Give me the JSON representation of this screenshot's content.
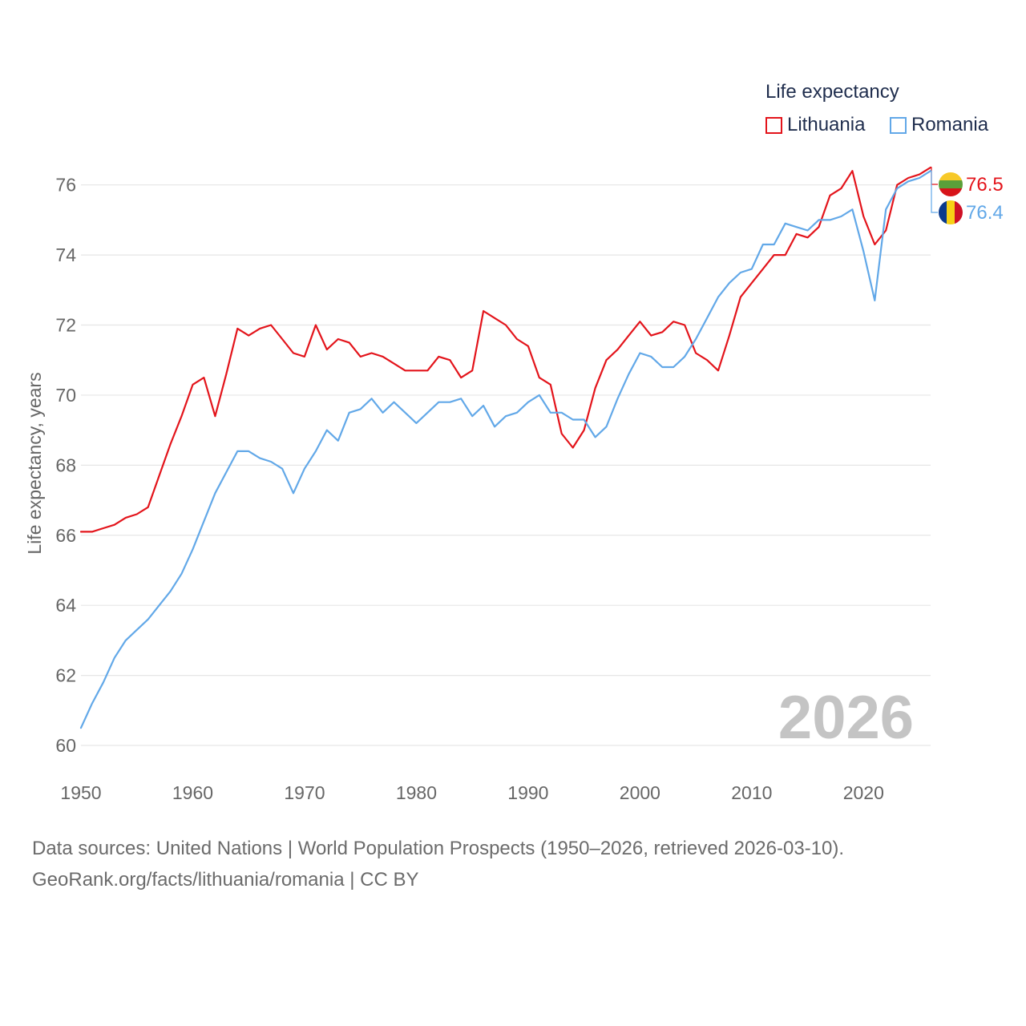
{
  "legend": {
    "title": "Life expectancy",
    "lithuania": "Lithuania",
    "romania": "Romania"
  },
  "footer": {
    "line1": "Data sources: United Nations | World Population Prospects (1950–2026, retrieved 2026-03-10).",
    "line2": "GeoRank.org/facts/lithuania/romania | CC BY"
  },
  "colors": {
    "lithuania": "#e3141b",
    "romania": "#62a8e8",
    "grid": "#e6e6e6",
    "axis_text": "#666666",
    "year_watermark": "#c4c4c4"
  },
  "chart_data": {
    "type": "line",
    "title": "Life expectancy",
    "xlabel": "",
    "ylabel": "Life expectancy, years",
    "xlim": [
      1950,
      2026
    ],
    "ylim": [
      60,
      77
    ],
    "xticks": [
      1950,
      1960,
      1970,
      1980,
      1990,
      2000,
      2010,
      2020
    ],
    "yticks": [
      60,
      62,
      64,
      66,
      68,
      70,
      72,
      74,
      76
    ],
    "year_label": "2026",
    "x": [
      1950,
      1951,
      1952,
      1953,
      1954,
      1955,
      1956,
      1957,
      1958,
      1959,
      1960,
      1961,
      1962,
      1963,
      1964,
      1965,
      1966,
      1967,
      1968,
      1969,
      1970,
      1971,
      1972,
      1973,
      1974,
      1975,
      1976,
      1977,
      1978,
      1979,
      1980,
      1981,
      1982,
      1983,
      1984,
      1985,
      1986,
      1987,
      1988,
      1989,
      1990,
      1991,
      1992,
      1993,
      1994,
      1995,
      1996,
      1997,
      1998,
      1999,
      2000,
      2001,
      2002,
      2003,
      2004,
      2005,
      2006,
      2007,
      2008,
      2009,
      2010,
      2011,
      2012,
      2013,
      2014,
      2015,
      2016,
      2017,
      2018,
      2019,
      2020,
      2021,
      2022,
      2023,
      2024,
      2025,
      2026
    ],
    "series": [
      {
        "name": "Lithuania",
        "end_label": "76.5",
        "flag": "lithuania-flag",
        "values": [
          66.1,
          66.1,
          66.2,
          66.3,
          66.5,
          66.6,
          66.8,
          67.7,
          68.6,
          69.4,
          70.3,
          70.5,
          69.4,
          70.6,
          71.9,
          71.7,
          71.9,
          72.0,
          71.6,
          71.2,
          71.1,
          72.0,
          71.3,
          71.6,
          71.5,
          71.1,
          71.2,
          71.1,
          70.9,
          70.7,
          70.7,
          70.7,
          71.1,
          71.0,
          70.5,
          70.7,
          72.4,
          72.2,
          72.0,
          71.6,
          71.4,
          70.5,
          70.3,
          68.9,
          68.5,
          69.0,
          70.2,
          71.0,
          71.3,
          71.7,
          72.1,
          71.7,
          71.8,
          72.1,
          72.0,
          71.2,
          71.0,
          70.7,
          71.7,
          72.8,
          73.2,
          73.6,
          74.0,
          74.0,
          74.6,
          74.5,
          74.8,
          75.7,
          75.9,
          76.4,
          75.1,
          74.3,
          74.7,
          76.0,
          76.2,
          76.3,
          76.5
        ]
      },
      {
        "name": "Romania",
        "end_label": "76.4",
        "flag": "romania-flag",
        "values": [
          60.5,
          61.2,
          61.8,
          62.5,
          63.0,
          63.3,
          63.6,
          64.0,
          64.4,
          64.9,
          65.6,
          66.4,
          67.2,
          67.8,
          68.4,
          68.4,
          68.2,
          68.1,
          67.9,
          67.2,
          67.9,
          68.4,
          69.0,
          68.7,
          69.5,
          69.6,
          69.9,
          69.5,
          69.8,
          69.5,
          69.2,
          69.5,
          69.8,
          69.8,
          69.9,
          69.4,
          69.7,
          69.1,
          69.4,
          69.5,
          69.8,
          70.0,
          69.5,
          69.5,
          69.3,
          69.3,
          68.8,
          69.1,
          69.9,
          70.6,
          71.2,
          71.1,
          70.8,
          70.8,
          71.1,
          71.6,
          72.2,
          72.8,
          73.2,
          73.5,
          73.6,
          74.3,
          74.3,
          74.9,
          74.8,
          74.7,
          75.0,
          75.0,
          75.1,
          75.3,
          74.1,
          72.7,
          75.3,
          75.9,
          76.1,
          76.2,
          76.4
        ]
      }
    ]
  }
}
